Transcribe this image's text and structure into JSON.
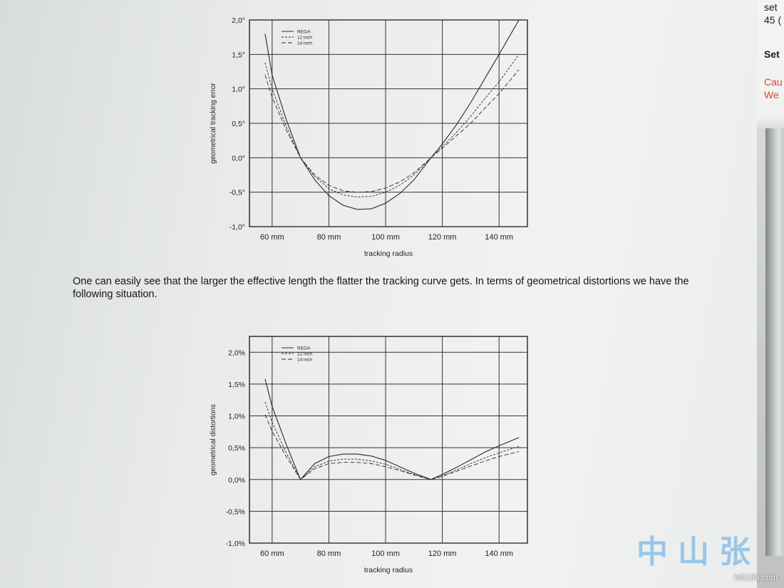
{
  "side": {
    "line1": "set",
    "line2": "45 (",
    "heading": "Set",
    "caution1": "Cau",
    "caution2": "We"
  },
  "paragraph": "One can easily see that the larger the effective length the flatter the tracking curve gets. In terms of geometrical distortions we have the following situation.",
  "watermark": "中山张",
  "site": "hifi168.com",
  "chart_data": [
    {
      "type": "line",
      "title": "",
      "xlabel": "tracking radius",
      "ylabel": "geometrical tracking error",
      "xlim": [
        52,
        150
      ],
      "ylim": [
        -1.0,
        2.0
      ],
      "x_ticks": [
        60,
        80,
        100,
        120,
        140
      ],
      "x_tick_labels": [
        "60 mm",
        "80 mm",
        "100 mm",
        "120 mm",
        "140 mm"
      ],
      "y_ticks": [
        2.0,
        1.5,
        1.0,
        0.5,
        0.0,
        -0.5,
        -1.0
      ],
      "y_tick_labels": [
        "2,0°",
        "1,5°",
        "1,0°",
        "0,5°",
        "0,0°",
        "-0,5°",
        "-1,0°"
      ],
      "grid": true,
      "legend": "top-left",
      "series": [
        {
          "name": "REGA",
          "dash": "",
          "x": [
            57.5,
            60,
            65,
            70,
            75,
            80,
            85,
            90,
            95,
            100,
            105,
            110,
            116,
            120,
            125,
            130,
            135,
            140,
            147
          ],
          "values": [
            1.8,
            1.2,
            0.55,
            0.0,
            -0.32,
            -0.55,
            -0.69,
            -0.75,
            -0.74,
            -0.66,
            -0.52,
            -0.32,
            0.0,
            0.2,
            0.48,
            0.8,
            1.15,
            1.5,
            2.0
          ]
        },
        {
          "name": "12 inch",
          "dash": "3,2",
          "x": [
            57.5,
            60,
            65,
            70,
            75,
            80,
            85,
            90,
            95,
            100,
            105,
            110,
            116,
            120,
            125,
            130,
            135,
            140,
            147
          ],
          "values": [
            1.38,
            1.0,
            0.45,
            0.0,
            -0.27,
            -0.45,
            -0.54,
            -0.57,
            -0.56,
            -0.5,
            -0.4,
            -0.25,
            0.0,
            0.16,
            0.37,
            0.6,
            0.86,
            1.1,
            1.5
          ]
        },
        {
          "name": "14 inch",
          "dash": "6,3",
          "x": [
            57.5,
            60,
            65,
            70,
            75,
            80,
            85,
            90,
            95,
            100,
            105,
            110,
            116,
            120,
            125,
            130,
            135,
            140,
            147
          ],
          "values": [
            1.2,
            0.88,
            0.4,
            0.0,
            -0.25,
            -0.4,
            -0.48,
            -0.5,
            -0.49,
            -0.44,
            -0.35,
            -0.22,
            0.0,
            0.14,
            0.32,
            0.5,
            0.72,
            0.93,
            1.28
          ]
        }
      ]
    },
    {
      "type": "line",
      "title": "",
      "xlabel": "tracking radius",
      "ylabel": "geometrical distortions",
      "xlim": [
        52,
        150
      ],
      "ylim": [
        -1.0,
        2.25
      ],
      "x_ticks": [
        60,
        80,
        100,
        120,
        140
      ],
      "x_tick_labels": [
        "60 mm",
        "80 mm",
        "100 mm",
        "120 mm",
        "140 mm"
      ],
      "y_ticks": [
        2.0,
        1.5,
        1.0,
        0.5,
        0.0,
        -0.5,
        -1.0
      ],
      "y_tick_labels": [
        "2,0%",
        "1,5%",
        "1,0%",
        "0,5%",
        "0,0%",
        "-0,5%",
        "-1,0%"
      ],
      "grid": true,
      "legend": "top-left",
      "series": [
        {
          "name": "REGA",
          "dash": "",
          "x": [
            57.5,
            60,
            65,
            70,
            75,
            80,
            85,
            90,
            95,
            100,
            105,
            110,
            116,
            120,
            125,
            130,
            135,
            140,
            147
          ],
          "values": [
            1.58,
            1.15,
            0.55,
            0.0,
            0.25,
            0.36,
            0.4,
            0.4,
            0.37,
            0.3,
            0.2,
            0.1,
            0.0,
            0.08,
            0.19,
            0.31,
            0.43,
            0.53,
            0.66
          ]
        },
        {
          "name": "12 inch",
          "dash": "3,2",
          "x": [
            57.5,
            60,
            65,
            70,
            75,
            80,
            85,
            90,
            95,
            100,
            105,
            110,
            116,
            120,
            125,
            130,
            135,
            140,
            147
          ],
          "values": [
            1.22,
            0.9,
            0.42,
            0.0,
            0.2,
            0.29,
            0.32,
            0.32,
            0.29,
            0.24,
            0.16,
            0.08,
            0.0,
            0.06,
            0.15,
            0.25,
            0.34,
            0.42,
            0.52
          ]
        },
        {
          "name": "14 inch",
          "dash": "6,3",
          "x": [
            57.5,
            60,
            65,
            70,
            75,
            80,
            85,
            90,
            95,
            100,
            105,
            110,
            116,
            120,
            125,
            130,
            135,
            140,
            147
          ],
          "values": [
            1.02,
            0.76,
            0.36,
            0.0,
            0.17,
            0.25,
            0.27,
            0.27,
            0.25,
            0.2,
            0.14,
            0.07,
            0.0,
            0.05,
            0.13,
            0.21,
            0.29,
            0.36,
            0.44
          ]
        }
      ]
    }
  ]
}
